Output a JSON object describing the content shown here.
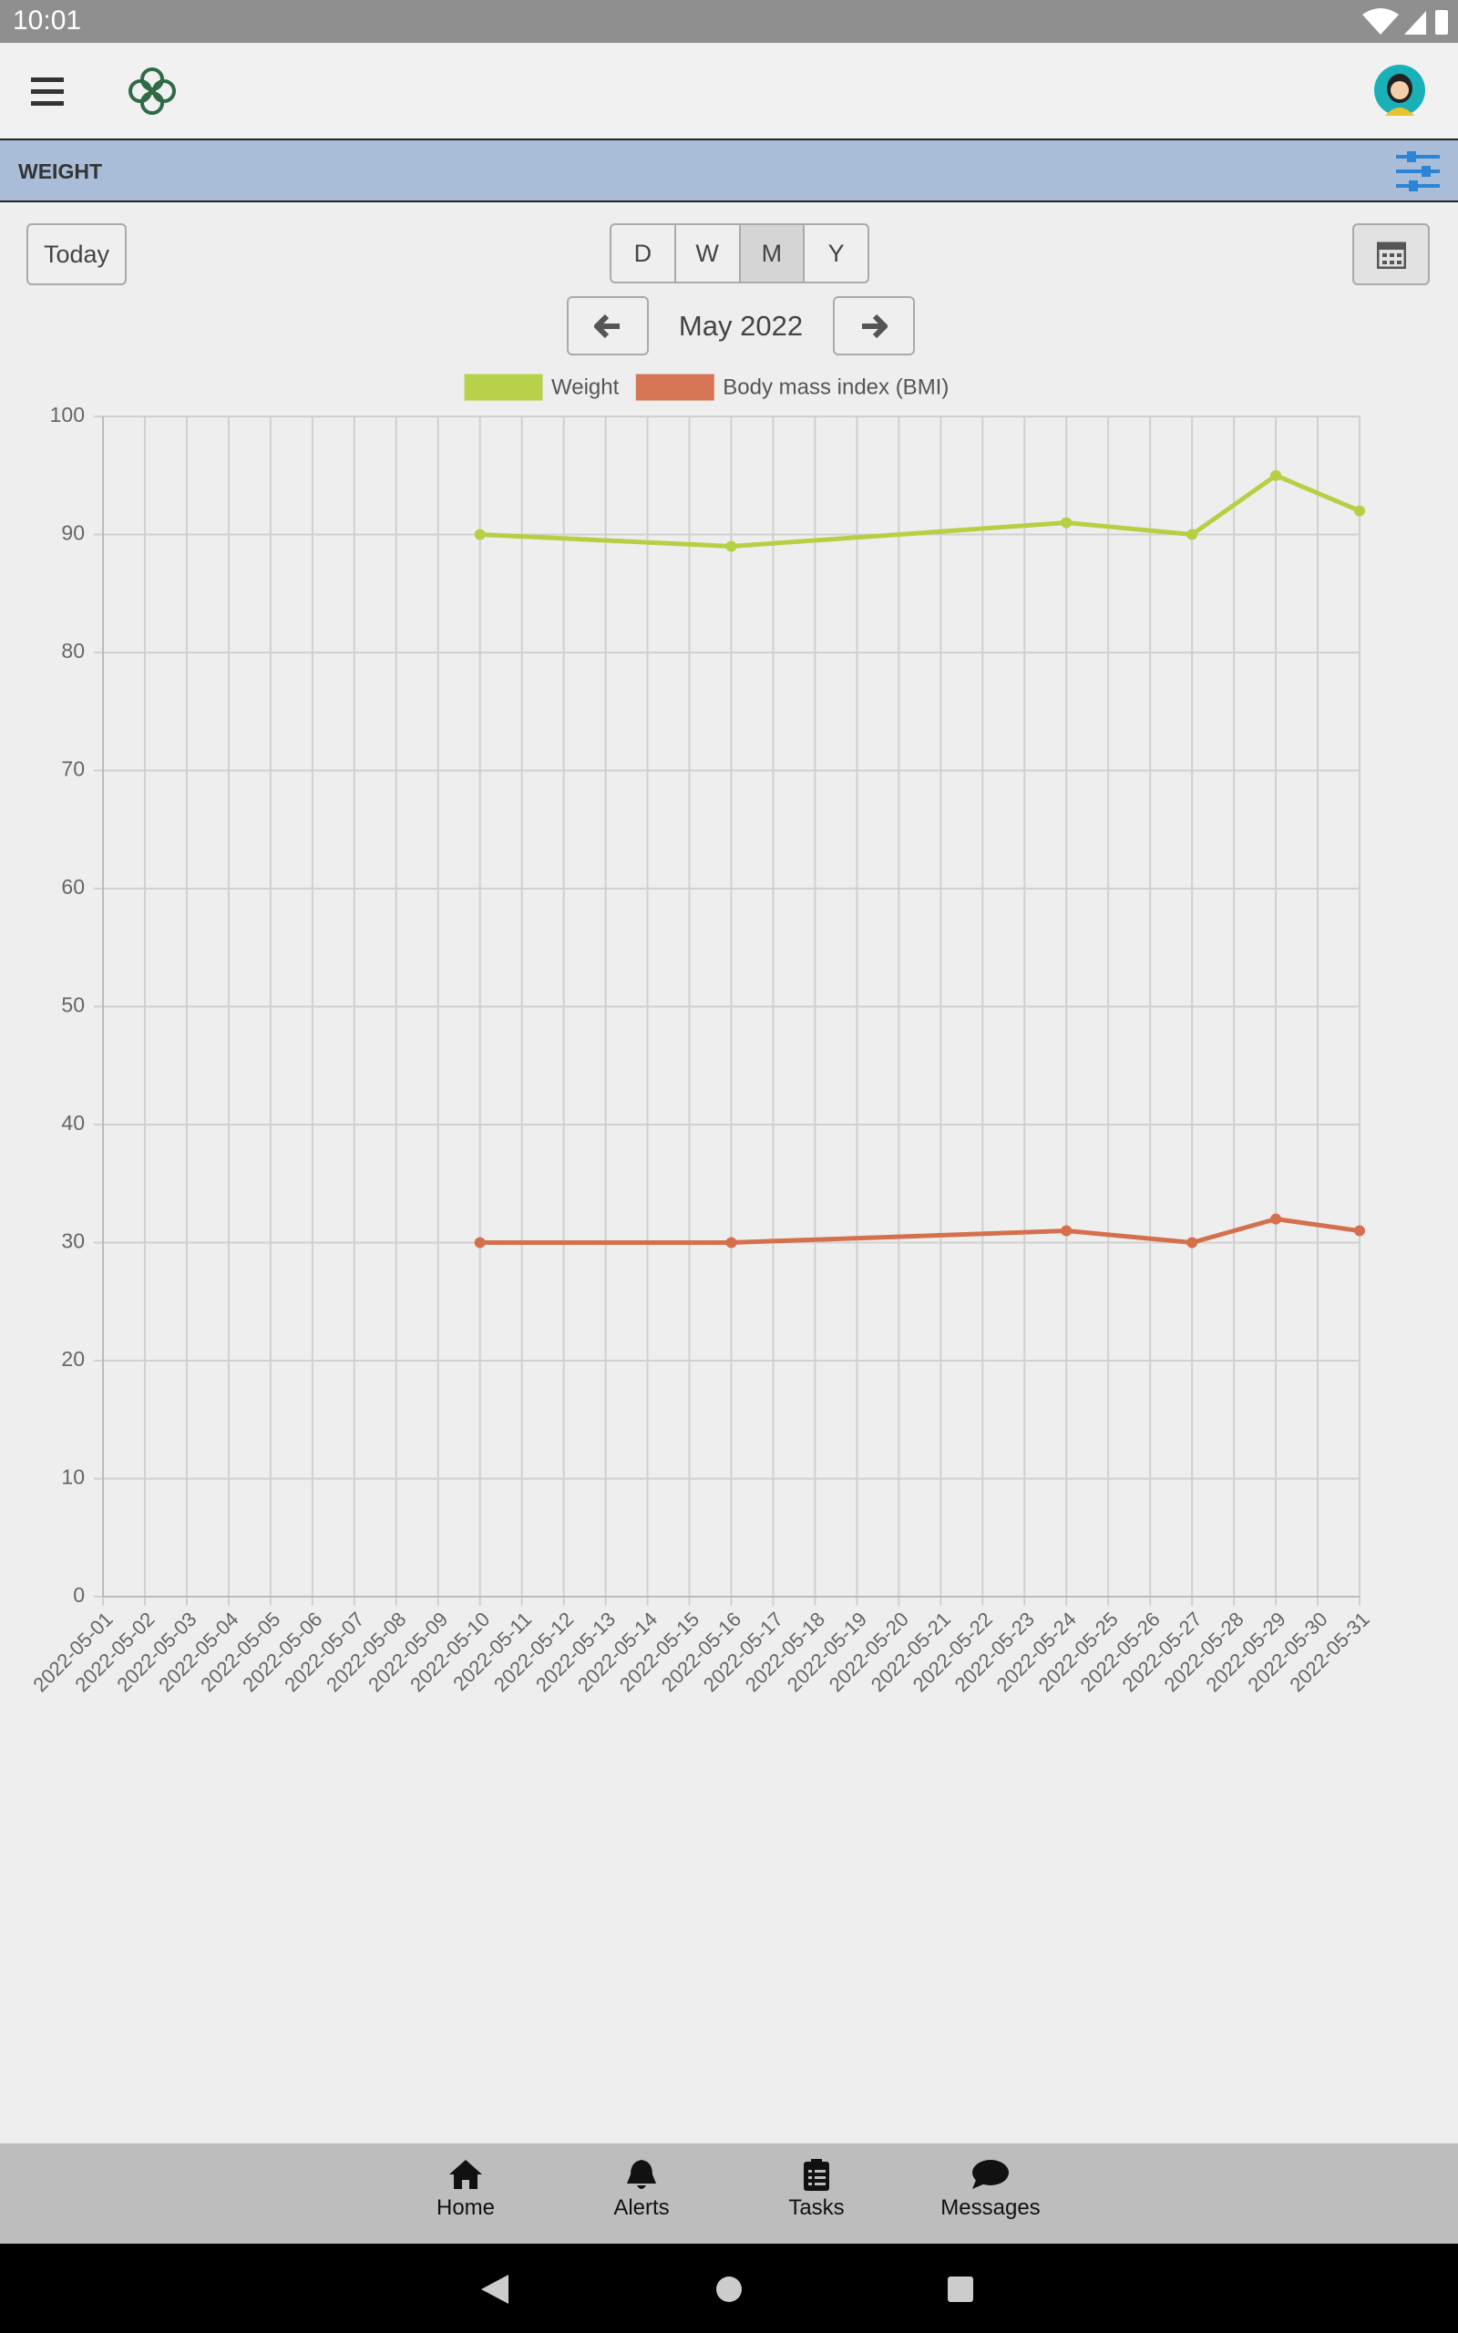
{
  "status_bar": {
    "time": "10:01"
  },
  "header": {
    "title": "WEIGHT"
  },
  "controls": {
    "today": "Today",
    "periods": [
      "D",
      "W",
      "M",
      "Y"
    ],
    "period_label": "May 2022"
  },
  "chart_data": {
    "type": "line",
    "xlim": [
      "2022-05-01",
      "2022-05-31"
    ],
    "xticks": [
      "2022-05-01",
      "2022-05-02",
      "2022-05-03",
      "2022-05-04",
      "2022-05-05",
      "2022-05-06",
      "2022-05-07",
      "2022-05-08",
      "2022-05-09",
      "2022-05-10",
      "2022-05-11",
      "2022-05-12",
      "2022-05-13",
      "2022-05-14",
      "2022-05-15",
      "2022-05-16",
      "2022-05-17",
      "2022-05-18",
      "2022-05-19",
      "2022-05-20",
      "2022-05-21",
      "2022-05-22",
      "2022-05-23",
      "2022-05-24",
      "2022-05-25",
      "2022-05-26",
      "2022-05-27",
      "2022-05-28",
      "2022-05-29",
      "2022-05-30",
      "2022-05-31"
    ],
    "ylim": [
      0,
      100
    ],
    "yticks": [
      0,
      10,
      20,
      30,
      40,
      50,
      60,
      70,
      80,
      90,
      100
    ],
    "grid": true,
    "series": [
      {
        "name": "Weight",
        "color": "#b5d043",
        "x": [
          "2022-05-10",
          "2022-05-16",
          "2022-05-24",
          "2022-05-27",
          "2022-05-29",
          "2022-05-31"
        ],
        "values": [
          90,
          89,
          91,
          90,
          95,
          92
        ]
      },
      {
        "name": "Body mass index (BMI)",
        "color": "#d5704d",
        "x": [
          "2022-05-10",
          "2022-05-16",
          "2022-05-24",
          "2022-05-27",
          "2022-05-29",
          "2022-05-31"
        ],
        "values": [
          30,
          30,
          31,
          30,
          32,
          31
        ]
      }
    ]
  },
  "bottom_nav": [
    "Home",
    "Alerts",
    "Tasks",
    "Messages"
  ]
}
